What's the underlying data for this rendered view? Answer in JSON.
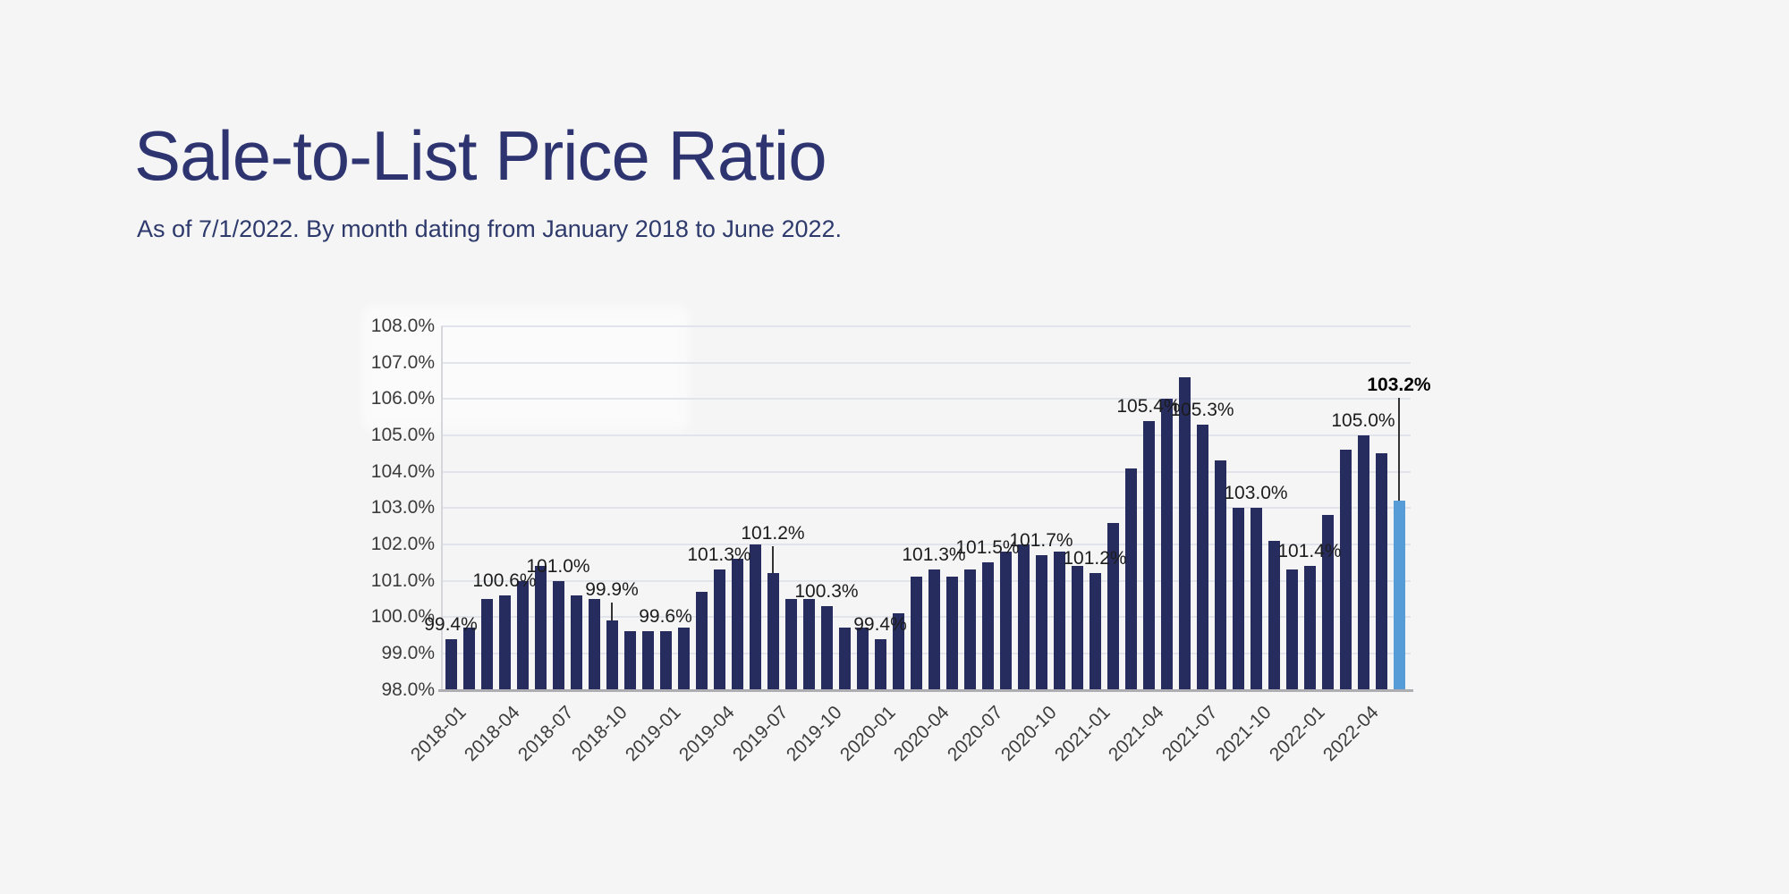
{
  "page": {
    "title": "Sale-to-List Price Ratio",
    "subtitle": "As of 7/1/2022. By month dating from January 2018 to June 2022.",
    "background_color": "#f5f5f6",
    "title_color": "#2d3470"
  },
  "chart_data": {
    "type": "bar",
    "title": "Sale-to-List Price Ratio",
    "xlabel": "",
    "ylabel": "",
    "ylim": [
      98,
      108
    ],
    "grid": true,
    "legend_position": "none",
    "bar_color": "#262c5e",
    "highlight_color": "#569cd6",
    "highlight_month": "2022-06",
    "categories": [
      "2018-01",
      "2018-02",
      "2018-03",
      "2018-04",
      "2018-05",
      "2018-06",
      "2018-07",
      "2018-08",
      "2018-09",
      "2018-10",
      "2018-11",
      "2018-12",
      "2019-01",
      "2019-02",
      "2019-03",
      "2019-04",
      "2019-05",
      "2019-06",
      "2019-07",
      "2019-08",
      "2019-09",
      "2019-10",
      "2019-11",
      "2019-12",
      "2020-01",
      "2020-02",
      "2020-03",
      "2020-04",
      "2020-05",
      "2020-06",
      "2020-07",
      "2020-08",
      "2020-09",
      "2020-10",
      "2020-11",
      "2020-12",
      "2021-01",
      "2021-02",
      "2021-03",
      "2021-04",
      "2021-05",
      "2021-06",
      "2021-07",
      "2021-08",
      "2021-09",
      "2021-10",
      "2021-11",
      "2021-12",
      "2022-01",
      "2022-02",
      "2022-03",
      "2022-04",
      "2022-05",
      "2022-06"
    ],
    "values": [
      99.4,
      99.7,
      100.5,
      100.6,
      101.0,
      101.4,
      101.0,
      100.6,
      100.5,
      99.9,
      99.6,
      99.6,
      99.6,
      99.7,
      100.7,
      101.3,
      101.6,
      102.0,
      101.2,
      100.5,
      100.5,
      100.3,
      99.7,
      99.7,
      99.4,
      100.1,
      101.1,
      101.3,
      101.1,
      101.3,
      101.5,
      101.8,
      102.0,
      101.7,
      101.8,
      101.4,
      101.2,
      102.6,
      104.1,
      105.4,
      106.0,
      106.6,
      105.3,
      104.3,
      103.0,
      103.0,
      102.1,
      101.3,
      101.4,
      102.8,
      104.6,
      105.0,
      104.5,
      103.2
    ],
    "ytick_labels": [
      "108.0%",
      "107.0%",
      "106.0%",
      "105.0%",
      "104.0%",
      "103.0%",
      "102.0%",
      "101.0%",
      "100.0%",
      "99.0%",
      "98.0%"
    ],
    "xtick_labels": [
      "2018-01",
      "2018-04",
      "2018-07",
      "2018-10",
      "2019-01",
      "2019-04",
      "2019-07",
      "2019-10",
      "2020-01",
      "2020-04",
      "2020-07",
      "2020-10",
      "2021-01",
      "2021-04",
      "2021-07",
      "2021-10",
      "2022-01",
      "2022-04"
    ],
    "data_labels": [
      {
        "month": "2018-01",
        "text": "99.4%",
        "leader": 0,
        "bold": false
      },
      {
        "month": "2018-04",
        "text": "100.6%",
        "leader": 0,
        "bold": false
      },
      {
        "month": "2018-07",
        "text": "101.0%",
        "leader": 0,
        "bold": false
      },
      {
        "month": "2018-10",
        "text": "99.9%",
        "leader": 20,
        "bold": false
      },
      {
        "month": "2019-01",
        "text": "99.6%",
        "leader": 0,
        "bold": false
      },
      {
        "month": "2019-04",
        "text": "101.3%",
        "leader": 0,
        "bold": false
      },
      {
        "month": "2019-07",
        "text": "101.2%",
        "leader": 30,
        "bold": false
      },
      {
        "month": "2019-10",
        "text": "100.3%",
        "leader": 0,
        "bold": false
      },
      {
        "month": "2020-01",
        "text": "99.4%",
        "leader": 0,
        "bold": false
      },
      {
        "month": "2020-04",
        "text": "101.3%",
        "leader": 0,
        "bold": false
      },
      {
        "month": "2020-07",
        "text": "101.5%",
        "leader": 0,
        "bold": false
      },
      {
        "month": "2020-10",
        "text": "101.7%",
        "leader": 0,
        "bold": false
      },
      {
        "month": "2021-01",
        "text": "101.2%",
        "leader": 0,
        "bold": false
      },
      {
        "month": "2021-04",
        "text": "105.4%",
        "leader": 0,
        "bold": false
      },
      {
        "month": "2021-07",
        "text": "105.3%",
        "leader": 0,
        "bold": false
      },
      {
        "month": "2021-10",
        "text": "103.0%",
        "leader": 0,
        "bold": false
      },
      {
        "month": "2022-01",
        "text": "101.4%",
        "leader": 0,
        "bold": false
      },
      {
        "month": "2022-04",
        "text": "105.0%",
        "leader": 0,
        "bold": false
      },
      {
        "month": "2022-06",
        "text": "103.2%",
        "leader": 115,
        "bold": true
      }
    ]
  }
}
